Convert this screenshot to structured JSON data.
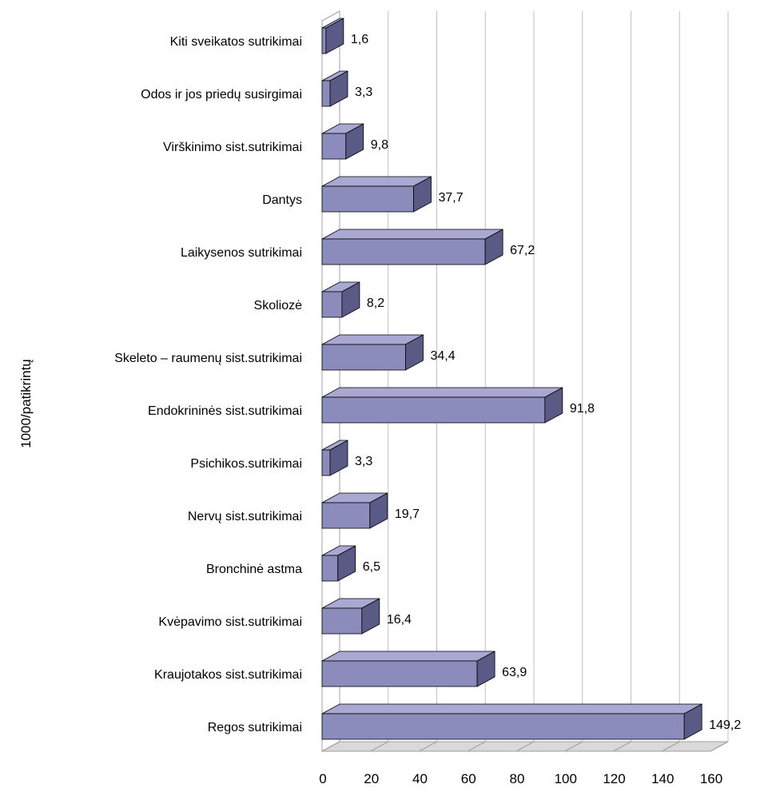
{
  "chart_data": {
    "type": "bar",
    "orientation": "horizontal",
    "three_d": true,
    "title": "",
    "xlabel": "",
    "ylabel": "1000/patikrintų",
    "xlim": [
      0,
      160
    ],
    "x_ticks": [
      0,
      20,
      40,
      60,
      80,
      100,
      120,
      140,
      160
    ],
    "grid": "vertical",
    "legend": "none",
    "categories": [
      "Kiti sveikatos sutrikimai",
      "Odos ir jos priedų susirgimai",
      "Virškinimo sist.sutrikimai",
      "Dantys",
      "Laikysenos sutrikimai",
      "Skoliozė",
      "Skeleto – raumenų sist.sutrikimai",
      "Endokrininės sist.sutrikimai",
      "Psichikos.sutrikimai",
      "Nervų sist.sutrikimai",
      "Bronchinė astma",
      "Kvėpavimo sist.sutrikimai",
      "Kraujotakos sist.sutrikimai",
      "Regos sutrikimai"
    ],
    "values": [
      1.6,
      3.3,
      9.8,
      37.7,
      67.2,
      8.2,
      34.4,
      91.8,
      3.3,
      19.7,
      6.5,
      16.4,
      63.9,
      149.2
    ],
    "value_labels": [
      "1,6",
      "3,3",
      "9,8",
      "37,7",
      "67,2",
      "8,2",
      "34,4",
      "91,8",
      "3,3",
      "19,7",
      "6,5",
      "16,4",
      "63,9",
      "149,2"
    ],
    "colors": {
      "bar_front": "#8c8cbc",
      "bar_top": "#a8a8d2",
      "bar_side": "#5a5a86",
      "grid": "#c0c0c0",
      "axis": "#a0a0a0"
    }
  }
}
